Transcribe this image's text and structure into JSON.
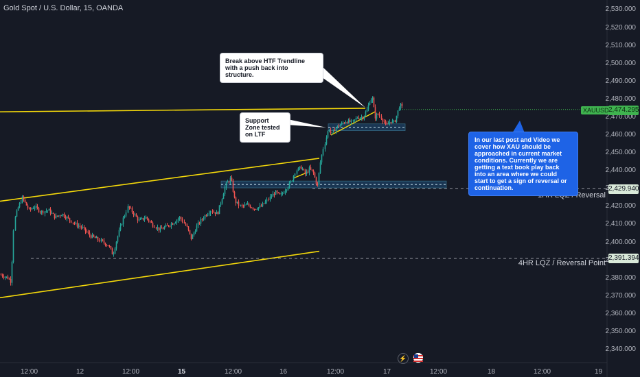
{
  "header": {
    "title": "Gold Spot / U.S. Dollar, 15, OANDA"
  },
  "price_axis": {
    "ticks": [
      "2,530.000",
      "2,520.000",
      "2,510.000",
      "2,500.000",
      "2,490.000",
      "2,480.000",
      "2,470.000",
      "2,460.000",
      "2,450.000",
      "2,440.000",
      "2,430.000",
      "2,420.000",
      "2,410.000",
      "2,400.000",
      "2,390.000",
      "2,380.000",
      "2,370.000",
      "2,360.000",
      "2,350.000",
      "2,340.000"
    ]
  },
  "time_axis": {
    "ticks": [
      "12:00",
      "12",
      "12:00",
      "15",
      "12:00",
      "16",
      "12:00",
      "17",
      "12:00",
      "18",
      "12:00",
      "19"
    ]
  },
  "labels": {
    "ticker": "XAUUSD",
    "current_price": "2,474.295",
    "level_1hr_price": "2,429.940",
    "level_1hr_label": "1HR LQZ / Reversal",
    "level_4hr_price": "2,391.394",
    "level_4hr_label": "4HR LQZ / Reversal Point"
  },
  "callouts": {
    "htf": "Break above HTF Trendline with a push back into structure.",
    "support": "Support Zone tested on LTF",
    "analysis": "In our last post and Video we cover how XAU should be approached in current market conditions. Currently we are getting a text book play back into an area where we could start to get a sign of reversal or continuation."
  },
  "icons": {
    "replay": "lightning-icon",
    "flag": "us-flag-icon"
  },
  "colors": {
    "background": "#161a25",
    "up": "#26a69a",
    "down": "#ef5350",
    "trendline": "#f5d90a",
    "zone": "#2962ff",
    "current": "#3fb34f"
  },
  "chart_data": {
    "type": "candlestick",
    "instrument": "Gold Spot / U.S. Dollar",
    "timeframe": "15",
    "ylim": [
      2335,
      2535
    ],
    "close_path": [
      [
        0,
        2382
      ],
      [
        12,
        2380
      ],
      [
        16,
        2378
      ],
      [
        20,
        2412
      ],
      [
        26,
        2420
      ],
      [
        32,
        2425
      ],
      [
        36,
        2422
      ],
      [
        42,
        2418
      ],
      [
        50,
        2420
      ],
      [
        60,
        2417
      ],
      [
        70,
        2418
      ],
      [
        80,
        2414
      ],
      [
        90,
        2416
      ],
      [
        100,
        2413
      ],
      [
        110,
        2410
      ],
      [
        120,
        2408
      ],
      [
        130,
        2404
      ],
      [
        140,
        2402
      ],
      [
        150,
        2400
      ],
      [
        158,
        2398
      ],
      [
        164,
        2393
      ],
      [
        170,
        2402
      ],
      [
        178,
        2412
      ],
      [
        186,
        2420
      ],
      [
        194,
        2416
      ],
      [
        202,
        2412
      ],
      [
        212,
        2414
      ],
      [
        222,
        2410
      ],
      [
        232,
        2407
      ],
      [
        242,
        2409
      ],
      [
        252,
        2411
      ],
      [
        262,
        2414
      ],
      [
        272,
        2408
      ],
      [
        278,
        2402
      ],
      [
        286,
        2409
      ],
      [
        296,
        2414
      ],
      [
        306,
        2418
      ],
      [
        316,
        2416
      ],
      [
        322,
        2424
      ],
      [
        328,
        2432
      ],
      [
        336,
        2436
      ],
      [
        342,
        2423
      ],
      [
        350,
        2420
      ],
      [
        360,
        2421
      ],
      [
        370,
        2419
      ],
      [
        380,
        2420
      ],
      [
        390,
        2424
      ],
      [
        400,
        2428
      ],
      [
        408,
        2426
      ],
      [
        416,
        2430
      ],
      [
        424,
        2434
      ],
      [
        430,
        2440
      ],
      [
        438,
        2442
      ],
      [
        444,
        2438
      ],
      [
        450,
        2441
      ],
      [
        456,
        2439
      ],
      [
        462,
        2431
      ],
      [
        466,
        2444
      ],
      [
        470,
        2452
      ],
      [
        474,
        2458
      ],
      [
        478,
        2464
      ],
      [
        482,
        2460
      ],
      [
        488,
        2464
      ],
      [
        496,
        2466
      ],
      [
        504,
        2468
      ],
      [
        512,
        2467
      ],
      [
        520,
        2470
      ],
      [
        528,
        2470
      ],
      [
        534,
        2474
      ],
      [
        538,
        2479
      ],
      [
        542,
        2481
      ],
      [
        546,
        2470
      ],
      [
        550,
        2472
      ],
      [
        556,
        2469
      ],
      [
        562,
        2465
      ],
      [
        568,
        2468
      ],
      [
        574,
        2467
      ],
      [
        578,
        2472
      ],
      [
        582,
        2477
      ],
      [
        586,
        2475
      ]
    ],
    "annotations": {
      "htf_trendline": {
        "from": [
          0,
          2473
        ],
        "to": [
          532,
          2475
        ]
      },
      "channel_upper": {
        "from": [
          0,
          2423
        ],
        "to": [
          465,
          2447
        ]
      },
      "channel_lower": {
        "from": [
          0,
          2369
        ],
        "to": [
          465,
          2395
        ]
      },
      "support_zone_ltf": {
        "x": [
          478,
          590
        ],
        "y": [
          2464,
          2465.5
        ]
      },
      "support_zone_htf": {
        "x": [
          322,
          650
        ],
        "y": [
          2432,
          2433.5
        ]
      },
      "level_1hr": 2430,
      "level_4hr": 2391,
      "current_price": 2474.3
    }
  }
}
